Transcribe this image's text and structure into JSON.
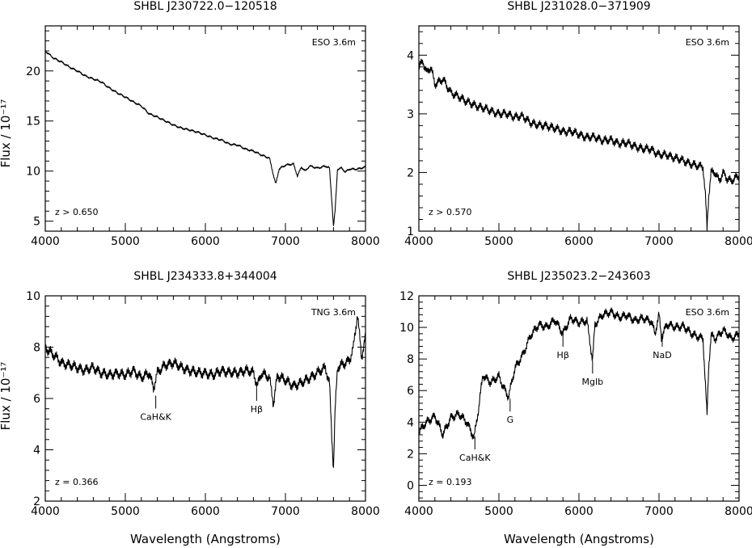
{
  "figure": {
    "xlabel": "Wavelength (Angstroms)",
    "ylabel": "Flux / 10⁻¹⁷"
  },
  "chart_data": [
    {
      "type": "line",
      "title": "SHBL J230722.0−120518",
      "telescope": "ESO 3.6m",
      "redshift": "z > 0.650",
      "xlim": [
        4000,
        8000
      ],
      "ylim": [
        4,
        24.5
      ],
      "xticks": [
        4000,
        5000,
        6000,
        7000,
        8000
      ],
      "yticks": [
        5,
        10,
        15,
        20
      ],
      "series": [
        {
          "x": [
            4000,
            4100,
            4200,
            4300,
            4400,
            4500,
            4600,
            4700,
            4800,
            4900,
            5000,
            5100,
            5200,
            5300,
            5400,
            5500,
            5600,
            5700,
            5800,
            5900,
            6000,
            6100,
            6200,
            6300,
            6400,
            6500,
            6600,
            6700,
            6800,
            6850,
            6880,
            6920,
            7000,
            7100,
            7150,
            7200,
            7250,
            7300,
            7400,
            7500,
            7550,
            7580,
            7600,
            7620,
            7650,
            7700,
            7750,
            7800,
            7900,
            8000
          ],
          "y": [
            22.0,
            21.3,
            20.9,
            20.4,
            20.0,
            19.5,
            19.2,
            18.9,
            18.3,
            17.8,
            17.4,
            16.9,
            16.5,
            15.7,
            15.4,
            15.0,
            14.6,
            14.3,
            14.1,
            13.9,
            13.6,
            13.3,
            13.1,
            12.7,
            12.6,
            12.2,
            12.0,
            11.6,
            11.3,
            9.6,
            8.7,
            10.2,
            10.6,
            10.7,
            9.5,
            10.4,
            10.0,
            10.5,
            10.3,
            10.5,
            10.3,
            7.0,
            4.5,
            6.0,
            10.2,
            10.3,
            9.9,
            10.2,
            10.2,
            10.4
          ]
        }
      ]
    },
    {
      "type": "line",
      "title": "SHBL J231028.0−371909",
      "telescope": "ESO 3.6m",
      "redshift": "z > 0.570",
      "xlim": [
        4000,
        8000
      ],
      "ylim": [
        1,
        4.5
      ],
      "xticks": [
        4000,
        5000,
        6000,
        7000,
        8000
      ],
      "yticks": [
        1,
        2,
        3,
        4
      ],
      "series": [
        {
          "x": [
            4000,
            4050,
            4100,
            4150,
            4200,
            4300,
            4400,
            4500,
            4600,
            4700,
            4800,
            4900,
            5000,
            5100,
            5200,
            5300,
            5400,
            5500,
            5600,
            5700,
            5800,
            5900,
            6000,
            6100,
            6200,
            6300,
            6400,
            6500,
            6600,
            6700,
            6800,
            6900,
            7000,
            7100,
            7200,
            7300,
            7400,
            7500,
            7550,
            7580,
            7600,
            7620,
            7650,
            7700,
            7750,
            7800,
            7850,
            7900,
            7950,
            8000
          ],
          "y": [
            3.8,
            3.9,
            3.7,
            3.8,
            3.5,
            3.6,
            3.35,
            3.3,
            3.2,
            3.15,
            3.1,
            3.05,
            3.0,
            3.0,
            2.95,
            2.95,
            2.85,
            2.8,
            2.8,
            2.75,
            2.7,
            2.7,
            2.65,
            2.6,
            2.6,
            2.55,
            2.55,
            2.5,
            2.5,
            2.45,
            2.4,
            2.4,
            2.3,
            2.3,
            2.25,
            2.2,
            2.15,
            2.1,
            2.1,
            1.6,
            1.05,
            1.6,
            2.0,
            2.0,
            1.85,
            2.0,
            1.9,
            1.85,
            1.9,
            1.95
          ]
        }
      ]
    },
    {
      "type": "line",
      "title": "SHBL J234333.8+344004",
      "telescope": "TNG 3.6m",
      "redshift": "z = 0.366",
      "xlim": [
        4000,
        8000
      ],
      "ylim": [
        2,
        10
      ],
      "xticks": [
        4000,
        5000,
        6000,
        7000,
        8000
      ],
      "yticks": [
        2,
        4,
        6,
        8,
        10
      ],
      "series": [
        {
          "x": [
            4000,
            4100,
            4200,
            4300,
            4400,
            4500,
            4600,
            4700,
            4800,
            4900,
            5000,
            5100,
            5200,
            5300,
            5350,
            5400,
            5500,
            5600,
            5700,
            5800,
            5900,
            6000,
            6100,
            6200,
            6300,
            6400,
            6500,
            6600,
            6650,
            6700,
            6800,
            6850,
            6900,
            7000,
            7100,
            7200,
            7300,
            7400,
            7500,
            7550,
            7580,
            7600,
            7620,
            7650,
            7700,
            7800,
            7850,
            7900,
            7950,
            8000
          ],
          "y": [
            8.0,
            7.7,
            7.4,
            7.3,
            7.2,
            7.1,
            7.2,
            7.0,
            6.9,
            7.0,
            6.9,
            7.1,
            6.8,
            7.0,
            6.4,
            7.0,
            7.3,
            7.4,
            7.2,
            7.1,
            7.0,
            7.0,
            6.9,
            7.1,
            7.0,
            7.0,
            7.1,
            7.0,
            6.5,
            7.0,
            6.8,
            5.8,
            6.9,
            6.7,
            6.5,
            6.6,
            6.8,
            7.0,
            7.2,
            6.6,
            4.5,
            3.3,
            5.5,
            7.2,
            7.3,
            7.5,
            8.0,
            9.3,
            7.6,
            8.4
          ]
        }
      ]
    },
    {
      "type": "line",
      "title": "SHBL J235023.2−243603",
      "telescope": "ESO 3.6m",
      "redshift": "z = 0.193",
      "xlim": [
        4000,
        8000
      ],
      "ylim": [
        -1,
        12
      ],
      "xticks": [
        4000,
        5000,
        6000,
        7000,
        8000
      ],
      "yticks": [
        0,
        2,
        4,
        6,
        8,
        10,
        12
      ],
      "series": [
        {
          "x": [
            4000,
            4100,
            4200,
            4300,
            4400,
            4500,
            4600,
            4690,
            4750,
            4800,
            4900,
            5000,
            5050,
            5120,
            5200,
            5300,
            5400,
            5500,
            5600,
            5700,
            5800,
            5900,
            6000,
            6100,
            6170,
            6200,
            6300,
            6400,
            6500,
            6600,
            6700,
            6800,
            6900,
            6950,
            7000,
            7030,
            7100,
            7200,
            7300,
            7400,
            7500,
            7550,
            7600,
            7620,
            7650,
            7700,
            7800,
            7850,
            7900,
            8000
          ],
          "y": [
            3.4,
            4.0,
            4.4,
            3.2,
            4.3,
            4.5,
            4.0,
            3.0,
            5.0,
            7.0,
            6.5,
            6.9,
            6.3,
            5.6,
            7.4,
            8.3,
            9.5,
            10.2,
            10.0,
            10.5,
            9.6,
            10.6,
            10.3,
            10.4,
            7.9,
            10.2,
            10.8,
            11.0,
            10.6,
            10.8,
            10.4,
            10.6,
            10.4,
            9.6,
            10.8,
            9.4,
            10.2,
            10.0,
            10.1,
            9.6,
            9.4,
            9.3,
            4.4,
            7.5,
            9.5,
            9.3,
            9.8,
            9.6,
            9.3,
            9.6
          ]
        }
      ],
      "lines": [
        {
          "label": "CaH&K",
          "x": 4700,
          "y": 3.4
        },
        {
          "label": "G",
          "x": 5140,
          "y": 5.8
        },
        {
          "label": "Hβ",
          "x": 5800,
          "y": 9.9
        },
        {
          "label": "MgIb",
          "x": 6170,
          "y": 8.2
        },
        {
          "label": "NaD",
          "x": 7040,
          "y": 9.9
        }
      ]
    }
  ],
  "panel3_lines": [
    {
      "label": "CaH&K",
      "x": 5380,
      "y": 6.3
    },
    {
      "label": "Hβ",
      "x": 6640,
      "y": 6.6
    }
  ]
}
